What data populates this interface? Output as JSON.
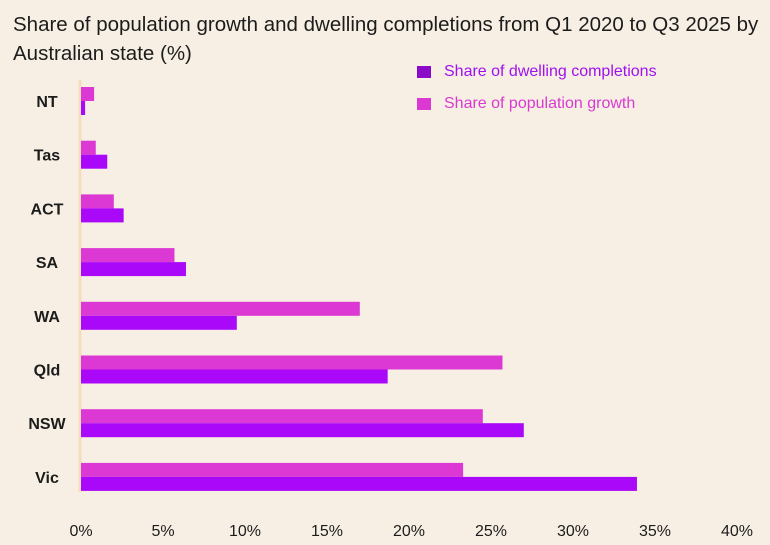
{
  "chart_data": {
    "type": "bar",
    "orientation": "horizontal",
    "title": "Share of population growth and dwelling completions from Q1 2020 to Q3 2025 by Australian state (%)",
    "categories": [
      "NT",
      "Tas",
      "ACT",
      "SA",
      "WA",
      "Qld",
      "NSW",
      "Vic"
    ],
    "series": [
      {
        "name": "Share of population growth",
        "color": "#dc38d4",
        "values": [
          0.8,
          0.9,
          2.0,
          5.7,
          17.0,
          25.7,
          24.5,
          23.3
        ]
      },
      {
        "name": "Share of dwelling completions",
        "color": "#aa08f8",
        "values": [
          0.25,
          1.6,
          2.6,
          6.4,
          9.5,
          18.7,
          27.0,
          33.9
        ]
      }
    ],
    "legend": [
      {
        "label": "Share of dwelling completions",
        "color": "#8a0ac8",
        "text_color": "#a010f0"
      },
      {
        "label": "Share of population growth",
        "color": "#dc38d4",
        "text_color": "#d83ad0"
      }
    ],
    "legend_placement": "top-right",
    "xlim": [
      0,
      40
    ],
    "xticks": [
      "0%",
      "5%",
      "10%",
      "15%",
      "20%",
      "25%",
      "30%",
      "35%",
      "40%"
    ],
    "xtick_values": [
      0,
      5,
      10,
      15,
      20,
      25,
      30,
      35,
      40
    ],
    "grid": false,
    "xlabel": "",
    "ylabel": ""
  }
}
